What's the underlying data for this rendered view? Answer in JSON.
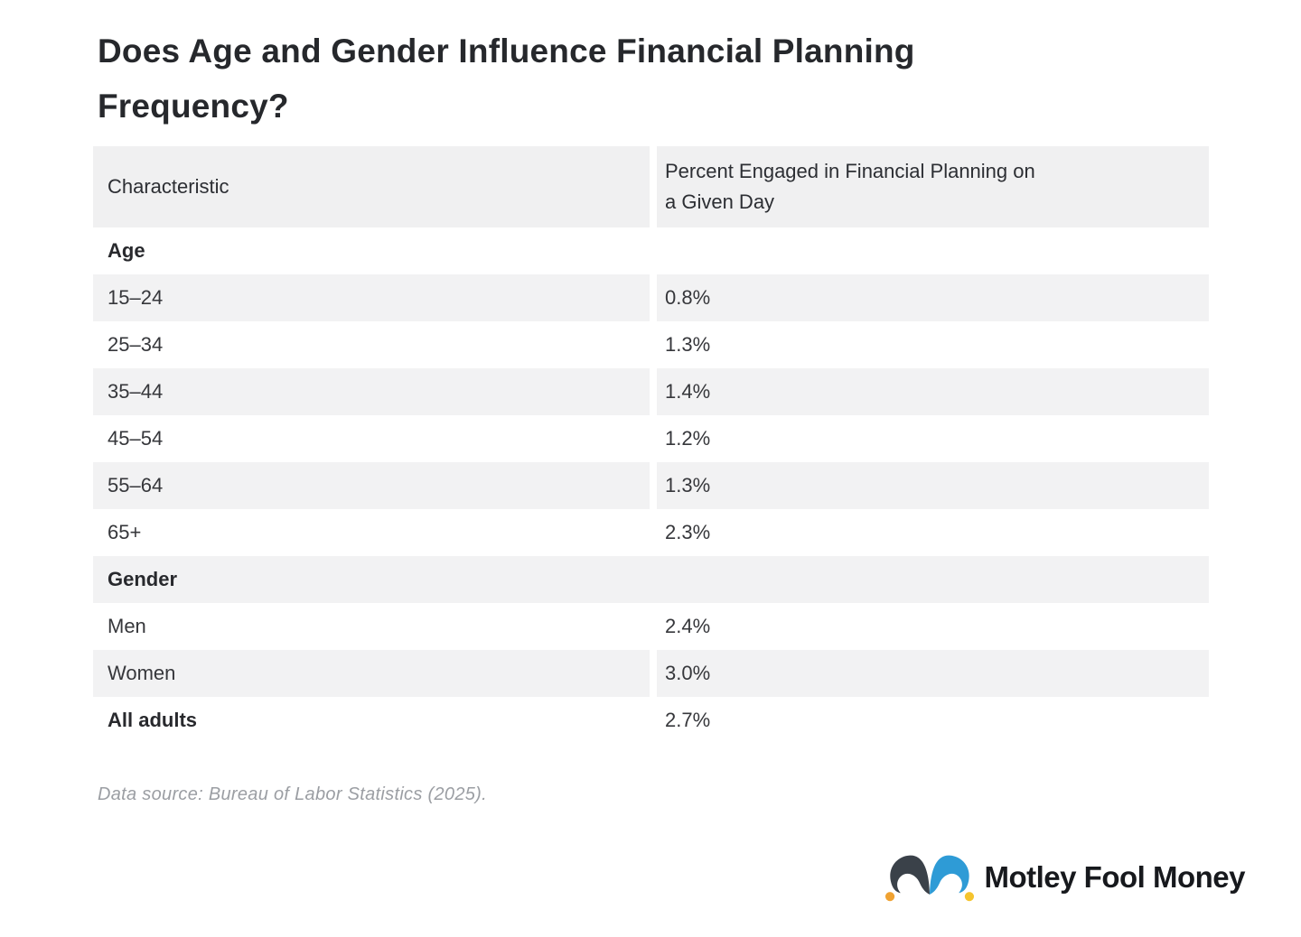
{
  "title": "Does Age and Gender Influence Financial Planning Frequency?",
  "table": {
    "col1_header": "Characteristic",
    "col2_header": "Percent Engaged in Financial Planning on a Given Day",
    "col2_header_line1": "Percent Engaged in Financial Planning on",
    "col2_header_line2": "a Given Day",
    "rows": [
      {
        "type": "section",
        "label": "Age",
        "shaded": false
      },
      {
        "type": "data",
        "label": "15–24",
        "value": "0.8%",
        "shaded": true
      },
      {
        "type": "data",
        "label": "25–34",
        "value": "1.3%",
        "shaded": false
      },
      {
        "type": "data",
        "label": "35–44",
        "value": "1.4%",
        "shaded": true
      },
      {
        "type": "data",
        "label": "45–54",
        "value": "1.2%",
        "shaded": false
      },
      {
        "type": "data",
        "label": "55–64",
        "value": "1.3%",
        "shaded": true
      },
      {
        "type": "data",
        "label": "65+",
        "value": "2.3%",
        "shaded": false
      },
      {
        "type": "section",
        "label": "Gender",
        "shaded": true
      },
      {
        "type": "data",
        "label": "Men",
        "value": "2.4%",
        "shaded": false
      },
      {
        "type": "data",
        "label": "Women",
        "value": "3.0%",
        "shaded": true
      },
      {
        "type": "data",
        "label": "All adults",
        "value": "2.7%",
        "shaded": false,
        "bold": true
      }
    ]
  },
  "source_note": "Data source: Bureau of Labor Statistics (2025).",
  "brand": {
    "name": "Motley Fool Money",
    "icon": "jester-hat-icon",
    "colors": {
      "hat_dark": "#3A4149",
      "hat_blue": "#2E9BD6",
      "bell_left": "#F0A232",
      "bell_right": "#F5C42E",
      "text": "#17191D"
    }
  },
  "colors": {
    "header_bg": "#F0F0F1",
    "row_shaded": "#F2F2F3",
    "title_text": "#26282C",
    "body_text": "#36373B",
    "source_text": "#9B9EA3"
  },
  "chart_data": {
    "type": "table",
    "title": "Does Age and Gender Influence Financial Planning Frequency?",
    "columns": [
      "Characteristic",
      "Percent Engaged in Financial Planning on a Given Day"
    ],
    "unit": "%",
    "sections": [
      {
        "label": "Age",
        "rows": [
          {
            "characteristic": "15–24",
            "percent": 0.8
          },
          {
            "characteristic": "25–34",
            "percent": 1.3
          },
          {
            "characteristic": "35–44",
            "percent": 1.4
          },
          {
            "characteristic": "45–54",
            "percent": 1.2
          },
          {
            "characteristic": "55–64",
            "percent": 1.3
          },
          {
            "characteristic": "65+",
            "percent": 2.3
          }
        ]
      },
      {
        "label": "Gender",
        "rows": [
          {
            "characteristic": "Men",
            "percent": 2.4
          },
          {
            "characteristic": "Women",
            "percent": 3.0
          }
        ]
      }
    ],
    "summary_row": {
      "characteristic": "All adults",
      "percent": 2.7
    },
    "source": "Bureau of Labor Statistics (2025)"
  }
}
